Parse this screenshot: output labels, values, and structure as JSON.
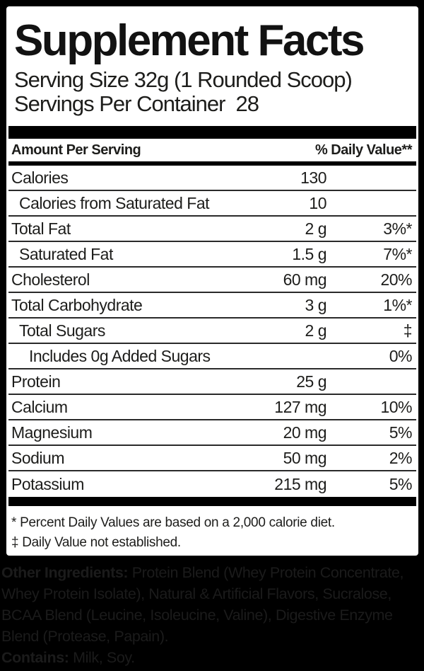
{
  "title": "Supplement Facts",
  "serving_info": {
    "serving_size": "Serving Size 32g (1 Rounded Scoop)",
    "servings_per_container_label": "Servings Per Container",
    "servings_per_container_value": "28"
  },
  "table": {
    "header": {
      "amount_per_serving": "Amount Per Serving",
      "daily_value": "% Daily Value**"
    },
    "rows": [
      {
        "label": "Calories",
        "amount": "130",
        "dv": ""
      },
      {
        "label": "Calories from Saturated Fat",
        "amount": "10",
        "dv": ""
      },
      {
        "label": "Total Fat",
        "amount": "2 g",
        "dv": "3%*"
      },
      {
        "label": "Saturated Fat",
        "amount": "1.5 g",
        "dv": "7%*"
      },
      {
        "label": "Cholesterol",
        "amount": "60 mg",
        "dv": "20%"
      },
      {
        "label": "Total Carbohydrate",
        "amount": "3 g",
        "dv": "1%*"
      },
      {
        "label": "Total Sugars",
        "amount": "2 g",
        "dv": "‡"
      },
      {
        "label": "Includes 0g Added Sugars",
        "amount": "",
        "dv": "0%"
      },
      {
        "label": "Protein",
        "amount": "25 g",
        "dv": ""
      },
      {
        "label": "Calcium",
        "amount": "127 mg",
        "dv": "10%"
      },
      {
        "label": "Magnesium",
        "amount": "20 mg",
        "dv": "5%"
      },
      {
        "label": "Sodium",
        "amount": "50 mg",
        "dv": "2%"
      },
      {
        "label": "Potassium",
        "amount": "215 mg",
        "dv": "5%"
      }
    ]
  },
  "footnotes": {
    "percent_daily": "* Percent Daily Values are based on a 2,000 calorie diet.",
    "not_established": "‡ Daily Value not established."
  },
  "other_ingredients": {
    "label": "Other Ingredients:",
    "line1_rest": " Protein Blend (Whey Protein Concentrate,",
    "line2": "Whey Protein Isolate), Natural & Artificial Flavors, Sucralose,",
    "line3": "BCAA Blend (Leucine, Isoleucine, Valine), Digestive Enzyme",
    "line4": "Blend (Protease, Papain).",
    "contains_label": "Contains:",
    "contains_rest": " Milk, Soy."
  },
  "colors": {
    "frame": "#000000",
    "panel": "#ffffff",
    "text": "#1d1d1b",
    "ingredients_text": "#1b1b1b"
  }
}
